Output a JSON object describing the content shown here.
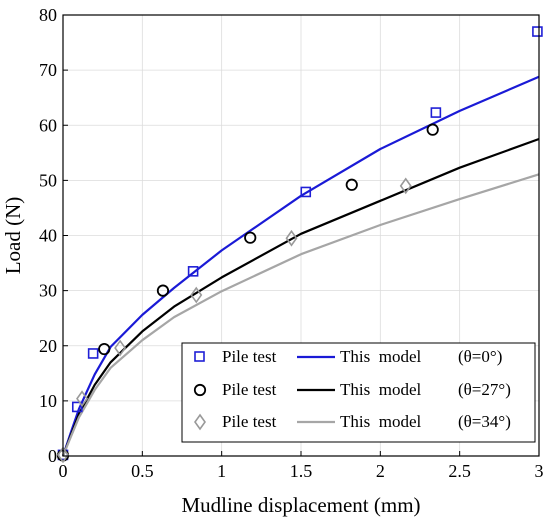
{
  "chart_data": {
    "type": "scatter",
    "xlabel": "Mudline displacement (mm)",
    "ylabel": "Load (N)",
    "xlim": [
      0,
      3
    ],
    "ylim": [
      0,
      80
    ],
    "xticks": [
      "0",
      "0.5",
      "1",
      "1.5",
      "2",
      "2.5",
      "3"
    ],
    "yticks": [
      "0",
      "10",
      "20",
      "30",
      "40",
      "50",
      "60",
      "70",
      "80"
    ],
    "grid": true,
    "legend_position": "bottom-right",
    "series": [
      {
        "kind": "scatter",
        "legend_label": "Pile test",
        "marker": "square",
        "color": "#1f1fd6",
        "x": [
          0.0,
          0.09,
          0.19,
          0.82,
          1.53,
          2.35,
          2.99
        ],
        "y": [
          0.2,
          8.9,
          18.6,
          33.5,
          47.9,
          62.3,
          77.0
        ]
      },
      {
        "kind": "scatter",
        "legend_label": "Pile test",
        "marker": "circle",
        "color": "#000000",
        "x": [
          0.0,
          0.26,
          0.63,
          1.18,
          1.82,
          2.33
        ],
        "y": [
          0.1,
          19.4,
          30.0,
          39.6,
          49.2,
          59.2
        ]
      },
      {
        "kind": "scatter",
        "legend_label": "Pile test",
        "marker": "diamond",
        "color": "#999999",
        "x": [
          0.0,
          0.12,
          0.36,
          0.84,
          1.44,
          2.16
        ],
        "y": [
          0.2,
          10.4,
          19.6,
          29.2,
          39.5,
          49.0
        ]
      },
      {
        "kind": "line",
        "legend_label": "This  model",
        "theta": "(θ=0°)",
        "color": "#1a1ad6",
        "x": [
          0,
          0.05,
          0.1,
          0.2,
          0.3,
          0.5,
          0.7,
          1.0,
          1.5,
          2.0,
          2.5,
          3.0
        ],
        "y": [
          0,
          4.3,
          8.5,
          14.8,
          19.8,
          25.6,
          30.5,
          37.3,
          47.2,
          55.7,
          62.6,
          68.8
        ]
      },
      {
        "kind": "line",
        "legend_label": "This  model",
        "theta": "(θ=27°)",
        "color": "#000000",
        "x": [
          0,
          0.05,
          0.1,
          0.2,
          0.3,
          0.5,
          0.7,
          1.0,
          1.5,
          2.0,
          2.5,
          3.0
        ],
        "y": [
          0,
          3.8,
          7.6,
          12.9,
          17.0,
          22.6,
          27.1,
          32.4,
          40.3,
          46.3,
          52.3,
          57.5
        ]
      },
      {
        "kind": "line",
        "legend_label": "This  model",
        "theta": "(θ=34°)",
        "color": "#a6a6a6",
        "x": [
          0,
          0.05,
          0.1,
          0.2,
          0.3,
          0.5,
          0.7,
          1.0,
          1.5,
          2.0,
          2.5,
          3.0
        ],
        "y": [
          0,
          3.5,
          7.0,
          12.0,
          16.0,
          21.0,
          25.2,
          29.9,
          36.6,
          41.9,
          46.6,
          51.1
        ]
      }
    ],
    "legend": {
      "rows": [
        {
          "marker_label": "Pile test",
          "line_label": "This  model",
          "theta": "(θ=0°)"
        },
        {
          "marker_label": "Pile test",
          "line_label": "This  model",
          "theta": "(θ=27°)"
        },
        {
          "marker_label": "Pile test",
          "line_label": "This  model",
          "theta": "(θ=34°)"
        }
      ]
    }
  }
}
